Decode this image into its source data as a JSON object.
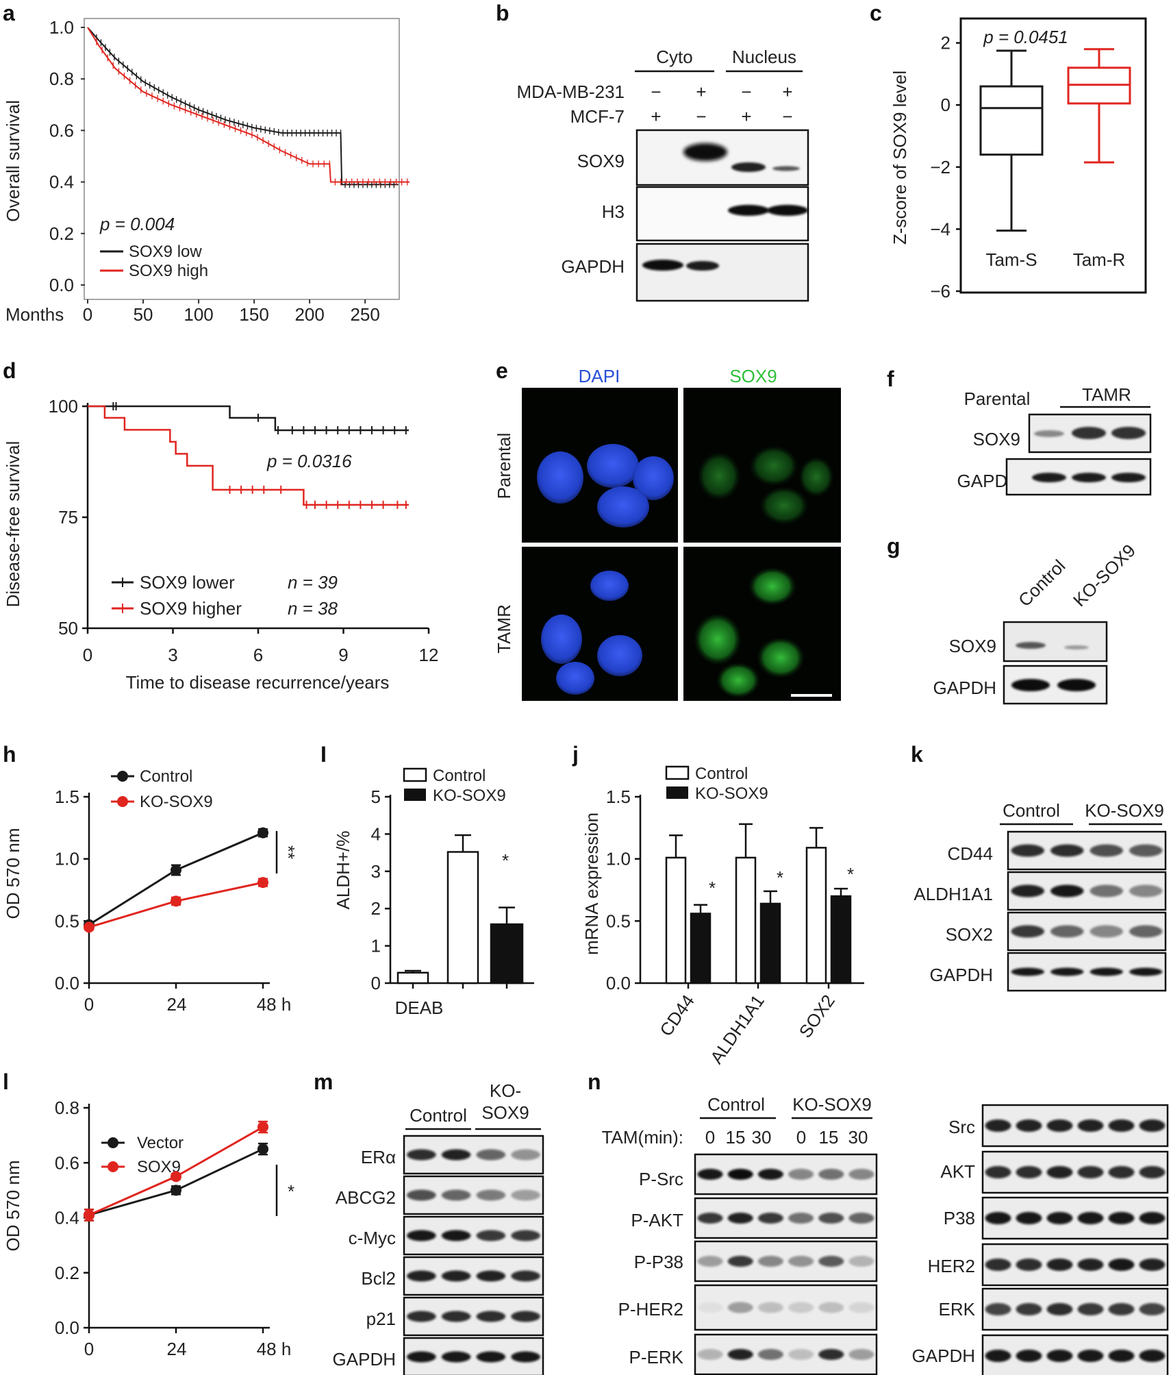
{
  "panels": {
    "a": {
      "letter": "a",
      "ylabel": "Overall survival",
      "xlabel": "Months",
      "pvalue": "p = 0.004",
      "legend": [
        "SOX9 low",
        "SOX9 high"
      ]
    },
    "b": {
      "letter": "b",
      "col_headers": [
        "Cyto",
        "Nucleus"
      ],
      "row_labels": [
        "MDA-MB-231",
        "MCF-7"
      ],
      "signs_231": [
        "−",
        "+",
        "−",
        "+"
      ],
      "signs_mcf7": [
        "+",
        "−",
        "+",
        "−"
      ],
      "blots": [
        "SOX9",
        "H3",
        "GAPDH"
      ]
    },
    "c": {
      "letter": "c",
      "ylabel": "Z-score of SOX9 level",
      "pvalue": "p = 0.0451",
      "groups": [
        "Tam-S",
        "Tam-R"
      ]
    },
    "d": {
      "letter": "d",
      "ylabel": "Disease-free survival",
      "xlabel": "Time to disease recurrence/years",
      "pvalue": "p = 0.0316",
      "legend": [
        "SOX9 lower",
        "SOX9 higher"
      ],
      "legend_n": [
        "n = 39",
        "n = 38"
      ]
    },
    "e": {
      "letter": "e",
      "channels": [
        "DAPI",
        "SOX9"
      ],
      "rows": [
        "Parental",
        "TAMR"
      ]
    },
    "f": {
      "letter": "f",
      "headers": [
        "Parental",
        "TAMR"
      ],
      "blots": [
        "SOX9",
        "GAPDH"
      ]
    },
    "g": {
      "letter": "g",
      "headers": [
        "Control",
        "KO-SOX9"
      ],
      "blots": [
        "SOX9",
        "GAPDH"
      ]
    },
    "h": {
      "letter": "h",
      "ylabel": "OD 570 nm",
      "legend": [
        "Control",
        "KO-SOX9"
      ],
      "xticks": [
        "0",
        "24",
        "48 h"
      ],
      "sig": "**"
    },
    "i": {
      "letter": "I",
      "ylabel": "ALDH+/%",
      "legend": [
        "Control",
        "KO-SOX9"
      ],
      "xlabel": "DEAB",
      "sig": "*"
    },
    "j": {
      "letter": "j",
      "ylabel": "mRNA expression",
      "legend": [
        "Control",
        "KO-SOX9"
      ],
      "sig": [
        "*",
        "*",
        "*"
      ]
    },
    "k": {
      "letter": "k",
      "headers": [
        "Control",
        "KO-SOX9"
      ],
      "blots": [
        "CD44",
        "ALDH1A1",
        "SOX2",
        "GAPDH"
      ]
    },
    "l": {
      "letter": "l",
      "ylabel": "OD 570 nm",
      "legend": [
        "Vector",
        "SOX9"
      ],
      "xticks": [
        "0",
        "24",
        "48 h"
      ],
      "sig": "*"
    },
    "m": {
      "letter": "m",
      "headers": [
        "Control",
        "KO-\nSOX9"
      ],
      "header_ko_1": "KO-",
      "header_ko_2": "SOX9",
      "blots": [
        "ERα",
        "ABCG2",
        "c-Myc",
        "Bcl2",
        "p21",
        "GAPDH"
      ]
    },
    "n": {
      "letter": "n",
      "headers": [
        "Control",
        "KO-SOX9"
      ],
      "tam_label": "TAM(min):",
      "times": [
        "0",
        "15",
        "30",
        "0",
        "15",
        "30"
      ],
      "blots_left": [
        "P-Src",
        "P-AKT",
        "P-P38",
        "P-HER2",
        "P-ERK"
      ],
      "blots_right": [
        "Src",
        "AKT",
        "P38",
        "HER2",
        "ERK",
        "GAPDH"
      ]
    }
  },
  "colors": {
    "black": "#1a1a1a",
    "red": "#e0251f",
    "dapi": "#2a4fd6",
    "sox9": "#2fbf3a"
  },
  "chart_data": [
    {
      "id": "a",
      "type": "line",
      "title": "",
      "xlabel": "Months",
      "ylabel": "Overall survival",
      "xlim": [
        0,
        290
      ],
      "ylim": [
        0,
        1
      ],
      "xticks": [
        0,
        50,
        100,
        150,
        200,
        250
      ],
      "yticks": [
        0.0,
        0.2,
        0.4,
        0.6,
        0.8,
        1.0
      ],
      "series": [
        {
          "name": "SOX9 low",
          "color": "#1a1a1a",
          "x": [
            0,
            10,
            25,
            50,
            75,
            100,
            125,
            150,
            175,
            200,
            228,
            229,
            280
          ],
          "y": [
            1.0,
            0.95,
            0.88,
            0.79,
            0.73,
            0.68,
            0.64,
            0.61,
            0.59,
            0.59,
            0.59,
            0.39,
            0.39
          ]
        },
        {
          "name": "SOX9 high",
          "color": "#e0251f",
          "x": [
            0,
            10,
            25,
            50,
            75,
            100,
            125,
            150,
            175,
            200,
            218,
            219,
            290
          ],
          "y": [
            1.0,
            0.93,
            0.84,
            0.75,
            0.7,
            0.66,
            0.62,
            0.58,
            0.52,
            0.47,
            0.47,
            0.4,
            0.4
          ]
        }
      ]
    },
    {
      "id": "c",
      "type": "box",
      "ylabel": "Z-score of SOX9 level",
      "ylim": [
        -6,
        2.5
      ],
      "yticks": [
        -6,
        -4,
        -2,
        0,
        2
      ],
      "categories": [
        "Tam-S",
        "Tam-R"
      ],
      "boxes": [
        {
          "name": "Tam-S",
          "color": "#1a1a1a",
          "min": -4.05,
          "q1": -1.6,
          "median": -0.1,
          "q3": 0.6,
          "max": 1.75
        },
        {
          "name": "Tam-R",
          "color": "#e0251f",
          "min": -1.85,
          "q1": 0.05,
          "median": 0.65,
          "q3": 1.2,
          "max": 1.8
        }
      ]
    },
    {
      "id": "d",
      "type": "line",
      "xlabel": "Time to disease recurrence/years",
      "ylabel": "Disease-free survival",
      "xlim": [
        0,
        12
      ],
      "ylim": [
        50,
        100
      ],
      "xticks": [
        0,
        3,
        6,
        9,
        12
      ],
      "yticks": [
        50,
        75,
        100
      ],
      "series": [
        {
          "name": "SOX9 lower",
          "color": "#1a1a1a",
          "x": [
            0,
            5.0,
            5.0,
            6.6,
            6.6,
            11.3
          ],
          "y": [
            100,
            100,
            97.4,
            97.4,
            94.6,
            94.6
          ]
        },
        {
          "name": "SOX9 higher",
          "color": "#e0251f",
          "x": [
            0,
            0.6,
            0.6,
            1.3,
            1.3,
            2.9,
            2.9,
            3.1,
            3.1,
            3.5,
            3.5,
            4.4,
            4.4,
            7.6,
            7.6,
            11.3
          ],
          "y": [
            100,
            100,
            97.4,
            97.4,
            94.7,
            94.7,
            92.0,
            92.0,
            89.3,
            89.3,
            86.6,
            86.6,
            81.2,
            81.2,
            77.8,
            77.8
          ]
        }
      ]
    },
    {
      "id": "h",
      "type": "line",
      "ylabel": "OD 570 nm",
      "x": [
        0,
        24,
        48
      ],
      "xlim": [
        0,
        48
      ],
      "ylim": [
        0,
        1.5
      ],
      "yticks": [
        0.0,
        0.5,
        1.0,
        1.5
      ],
      "series": [
        {
          "name": "Control",
          "color": "#1a1a1a",
          "values": [
            0.47,
            0.91,
            1.21
          ],
          "err": [
            0.02,
            0.04,
            0.03
          ]
        },
        {
          "name": "KO-SOX9",
          "color": "#e0251f",
          "values": [
            0.45,
            0.66,
            0.81
          ],
          "err": [
            0.02,
            0.03,
            0.03
          ]
        }
      ]
    },
    {
      "id": "i",
      "type": "bar",
      "ylabel": "ALDH+/%",
      "ylim": [
        0,
        5
      ],
      "yticks": [
        0,
        1,
        2,
        3,
        4,
        5
      ],
      "categories": [
        "DEAB",
        "Control",
        "KO-SOX9"
      ],
      "values": [
        0.28,
        3.52,
        1.58
      ],
      "err": [
        0.05,
        0.45,
        0.45
      ],
      "fills": [
        "white",
        "white",
        "black"
      ]
    },
    {
      "id": "j",
      "type": "bar",
      "ylabel": "mRNA expression",
      "ylim": [
        0,
        1.5
      ],
      "yticks": [
        0.0,
        0.5,
        1.0,
        1.5
      ],
      "categories": [
        "CD44",
        "ALDH1A1",
        "SOX2"
      ],
      "series": [
        {
          "name": "Control",
          "values": [
            1.01,
            1.01,
            1.09
          ],
          "err": [
            0.18,
            0.27,
            0.16
          ]
        },
        {
          "name": "KO-SOX9",
          "values": [
            0.56,
            0.64,
            0.7
          ],
          "err": [
            0.07,
            0.1,
            0.06
          ]
        }
      ]
    },
    {
      "id": "l",
      "type": "line",
      "ylabel": "OD 570 nm",
      "x": [
        0,
        24,
        48
      ],
      "xlim": [
        0,
        48
      ],
      "ylim": [
        0,
        0.8
      ],
      "yticks": [
        0.0,
        0.2,
        0.4,
        0.6,
        0.8
      ],
      "series": [
        {
          "name": "Vector",
          "color": "#1a1a1a",
          "values": [
            0.41,
            0.5,
            0.65
          ],
          "err": [
            0.02,
            0.015,
            0.02
          ]
        },
        {
          "name": "SOX9",
          "color": "#e0251f",
          "values": [
            0.41,
            0.55,
            0.73
          ],
          "err": [
            0.02,
            0.01,
            0.02
          ]
        }
      ]
    }
  ]
}
